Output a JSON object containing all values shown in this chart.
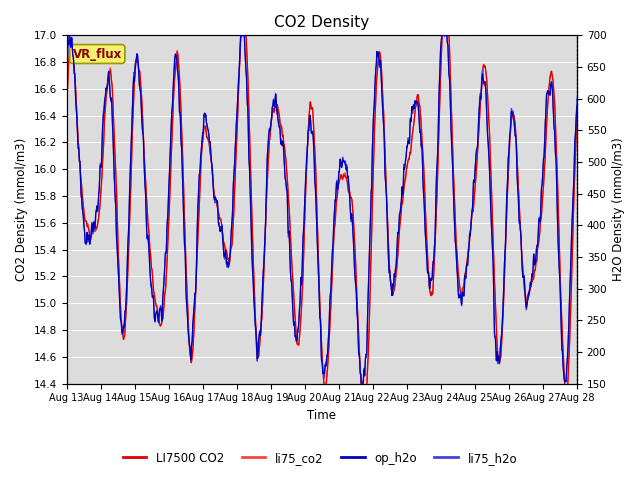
{
  "title": "CO2 Density",
  "xlabel": "Time",
  "ylabel_left": "CO2 Density (mmol/m3)",
  "ylabel_right": "H2O Density (mmol/m3)",
  "ylim_left": [
    14.4,
    17.0
  ],
  "ylim_right": [
    150,
    700
  ],
  "yticks_left": [
    14.4,
    14.6,
    14.8,
    15.0,
    15.2,
    15.4,
    15.6,
    15.8,
    16.0,
    16.2,
    16.4,
    16.6,
    16.8,
    17.0
  ],
  "yticks_right": [
    150,
    200,
    250,
    300,
    350,
    400,
    450,
    500,
    550,
    600,
    650,
    700
  ],
  "xtick_labels": [
    "Aug 13",
    "Aug 14",
    "Aug 15",
    "Aug 16",
    "Aug 17",
    "Aug 18",
    "Aug 19",
    "Aug 20",
    "Aug 21",
    "Aug 22",
    "Aug 23",
    "Aug 24",
    "Aug 25",
    "Aug 26",
    "Aug 27",
    "Aug 28"
  ],
  "colors": {
    "LI7500_CO2": "#DD0000",
    "li75_co2": "#FF4444",
    "op_h2o": "#0000BB",
    "li75_h2o": "#4444DD"
  },
  "legend_label": "VR_flux",
  "plot_bg_color": "#DCDCDC",
  "grid_color": "#BEBEBE",
  "n_points": 3000,
  "seed": 7
}
